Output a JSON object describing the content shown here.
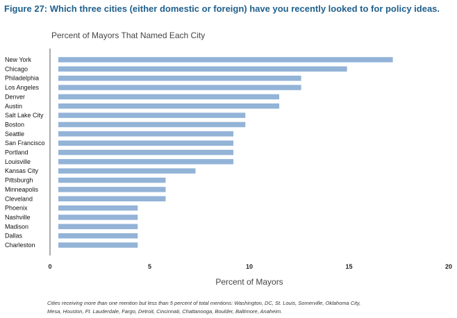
{
  "figure": {
    "title": "Figure 27: Which three cities (either domestic or foreign) have you recently looked to for policy ideas.",
    "footnote": "Cities receiving more than one mention but less than 5 percent of total mentions: Washington, DC, St. Louis, Somerville, Oklahoma City, Mesa, Houston, Ft. Lauderdale, Fargo, Detroit, Cincinnati, Chattanooga, Boulder, Baltimore, Anaheim."
  },
  "chart_data": {
    "type": "bar",
    "orientation": "horizontal",
    "title": "Percent of Mayors That Named Each City",
    "xlabel": "Percent of Mayors",
    "ylabel": "",
    "xlim": [
      0,
      20
    ],
    "xticks": [
      0,
      5,
      10,
      15,
      20
    ],
    "grid": false,
    "bar_color": "#93b3d7",
    "categories": [
      "New York",
      "Chicago",
      "Philadelphia",
      "Los Angeles",
      "Denver",
      "Austin",
      "Salt Lake City",
      "Boston",
      "Seattle",
      "San Francisco",
      "Portland",
      "Louisville",
      "Kansas City",
      "Pittsburgh",
      "Minneapolis",
      "Cleveland",
      "Phoenix",
      "Nashville",
      "Madison",
      "Dallas",
      "Charleston"
    ],
    "values": [
      17.2,
      14.9,
      12.6,
      12.6,
      11.5,
      11.5,
      9.8,
      9.8,
      9.2,
      9.2,
      9.2,
      9.2,
      7.3,
      5.8,
      5.8,
      5.8,
      4.4,
      4.4,
      4.4,
      4.4,
      4.4
    ]
  }
}
